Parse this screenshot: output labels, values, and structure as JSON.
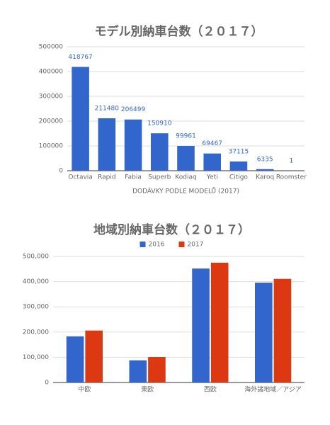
{
  "chart_data": [
    {
      "type": "bar",
      "title": "モデル別納車台数（２０１７）",
      "categories": [
        "Octavia",
        "Rapid",
        "Fabia",
        "Superb",
        "Kodiaq",
        "Yeti",
        "Citigo",
        "Karoq",
        "Roomster"
      ],
      "values": [
        418767,
        211480,
        206499,
        150910,
        99961,
        69467,
        37115,
        6335,
        1
      ],
      "color": "#3366cc",
      "x_label": "DODÁVKY PODLE MODELŮ (2017)",
      "ylim": [
        0,
        500000
      ],
      "yticks": [
        0,
        100000,
        200000,
        300000,
        400000,
        500000
      ],
      "grid": true
    },
    {
      "type": "bar",
      "title": "地域別納車台数（２０１７）",
      "categories": [
        "中欧",
        "東欧",
        "西欧",
        "海外諸地域／アジア"
      ],
      "series": [
        {
          "name": "2016",
          "color": "#3366cc",
          "values": [
            183000,
            88000,
            452000,
            396000
          ]
        },
        {
          "name": "2017",
          "color": "#dc3912",
          "values": [
            206000,
            101000,
            475000,
            411000
          ]
        }
      ],
      "legend": "top",
      "ylim": [
        0,
        500000
      ],
      "yticks": [
        0,
        {
          "value": 100000,
          "label": "100,000"
        },
        {
          "value": 200000,
          "label": "200,000"
        },
        {
          "value": 300000,
          "label": "300,000"
        },
        {
          "value": 400000,
          "label": "400,000"
        },
        {
          "value": 500000,
          "label": "500,000"
        }
      ],
      "grid": true
    }
  ]
}
